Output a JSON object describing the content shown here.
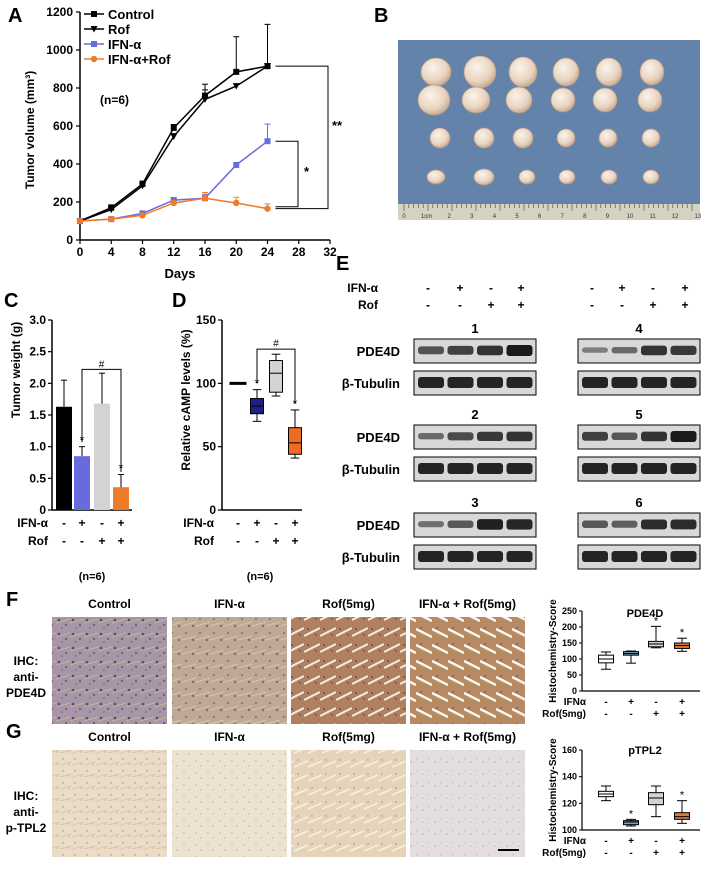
{
  "panel_letters": [
    "A",
    "B",
    "C",
    "D",
    "E",
    "F",
    "G"
  ],
  "colors": {
    "control": "#000000",
    "rof": "#d3d3d3",
    "ifn": "#6a6adf",
    "ifn_rof": "#ef7b2a",
    "cAMP_ifn": "#1f1f8a",
    "cAMP_combo": "#f06b22",
    "box_blue": "#6fa6c8",
    "box_orange": "#e07a3a",
    "tissue_bg": "#9c8aa0",
    "tissue_pale": "#e8d9c4",
    "photo_bg": "#5a7aa8",
    "blot_bg": "#d8d8d8",
    "blot_band": "#1a1a1a"
  },
  "chart_data": [
    {
      "panel": "A",
      "type": "line",
      "xlabel": "Days",
      "ylabel": "Tumor volume (mm³)",
      "xlim": [
        0,
        32
      ],
      "ylim": [
        0,
        1200
      ],
      "xticks": [
        0,
        4,
        8,
        12,
        16,
        20,
        24,
        28,
        32
      ],
      "yticks": [
        0,
        200,
        400,
        600,
        800,
        1000,
        1200
      ],
      "annotation": "(n=6)",
      "significance": [
        "**",
        "*"
      ],
      "series": [
        {
          "name": "Control",
          "x": [
            0,
            4,
            8,
            12,
            16,
            20,
            24
          ],
          "y": [
            100,
            170,
            295,
            590,
            760,
            885,
            915
          ],
          "err": [
            0,
            15,
            15,
            18,
            60,
            185,
            220
          ],
          "marker": "square"
        },
        {
          "name": "Rof",
          "x": [
            0,
            4,
            8,
            12,
            16,
            20,
            24
          ],
          "y": [
            100,
            160,
            285,
            545,
            740,
            810,
            915
          ],
          "err": [
            0,
            12,
            15,
            15,
            50,
            0,
            0
          ],
          "marker": "triangle-down"
        },
        {
          "name": "IFN-α",
          "x": [
            0,
            4,
            8,
            12,
            16,
            24
          ],
          "y": [
            100,
            110,
            140,
            210,
            220,
            520
          ],
          "err": [
            0,
            8,
            10,
            12,
            20,
            90
          ],
          "marker": "square"
        },
        {
          "name": "IFN-α+Rof",
          "x": [
            0,
            4,
            8,
            12,
            16,
            20,
            24
          ],
          "y": [
            100,
            110,
            130,
            195,
            220,
            195,
            165
          ],
          "err": [
            0,
            8,
            8,
            10,
            30,
            30,
            25
          ],
          "marker": "circle"
        }
      ],
      "extra_points": [
        {
          "series": "IFN-α",
          "x": 20,
          "y": 395,
          "err": 10
        }
      ]
    },
    {
      "panel": "C",
      "type": "bar",
      "ylabel": "Tumor weight (g)",
      "ylim": [
        0,
        3.0
      ],
      "yticks": [
        0,
        0.5,
        1.0,
        1.5,
        2.0,
        2.5,
        3.0
      ],
      "ytick_labels": [
        "0",
        "0.5",
        "1.0",
        "1.5",
        "2.0",
        "2.5",
        "3.0"
      ],
      "values": [
        1.63,
        0.85,
        1.68,
        0.36
      ],
      "err": [
        0.42,
        0.15,
        0.48,
        0.2
      ],
      "star": [
        "",
        "*",
        "",
        "*"
      ],
      "hash": "#",
      "row_labels": [
        "IFN-α",
        "Rof"
      ],
      "ifn_signs": [
        "-",
        "+",
        "-",
        "+"
      ],
      "rof_signs": [
        "-",
        "-",
        "+",
        "+"
      ],
      "annotation": "(n=6)"
    },
    {
      "panel": "D",
      "type": "box",
      "ylabel": "Relative cAMP levels (%)",
      "ylim": [
        0,
        150
      ],
      "yticks": [
        0,
        50,
        100,
        150
      ],
      "boxes": [
        {
          "median": 100,
          "q1": 100,
          "q3": 100,
          "min": 100,
          "max": 100,
          "star": ""
        },
        {
          "median": 82,
          "q1": 76,
          "q3": 88,
          "min": 70,
          "max": 95,
          "star": "*"
        },
        {
          "median": 108,
          "q1": 93,
          "q3": 118,
          "min": 90,
          "max": 123,
          "star": ""
        },
        {
          "median": 53,
          "q1": 44,
          "q3": 65,
          "min": 41,
          "max": 79,
          "star": "*"
        }
      ],
      "hash": "#",
      "row_labels": [
        "IFN-α",
        "Rof"
      ],
      "ifn_signs": [
        "-",
        "+",
        "-",
        "+"
      ],
      "rof_signs": [
        "-",
        "-",
        "+",
        "+"
      ],
      "annotation": "(n=6)"
    },
    {
      "panel": "F-right",
      "type": "box",
      "title": "PDE4D",
      "ylabel": "Histochemistry-Score",
      "ylim": [
        0,
        250
      ],
      "yticks": [
        0,
        50,
        100,
        150,
        200,
        250
      ],
      "boxes": [
        {
          "median": 100,
          "q1": 88,
          "q3": 112,
          "min": 68,
          "max": 122,
          "star": ""
        },
        {
          "median": 117,
          "q1": 112,
          "q3": 123,
          "min": 87,
          "max": 125,
          "star": ""
        },
        {
          "median": 147,
          "q1": 138,
          "q3": 155,
          "min": 135,
          "max": 202,
          "star": "*"
        },
        {
          "median": 142,
          "q1": 133,
          "q3": 150,
          "min": 124,
          "max": 165,
          "star": "*"
        }
      ],
      "row_labels": [
        "IFNα",
        "Rof(5mg)"
      ],
      "ifn_signs": [
        "-",
        "+",
        "-",
        "+"
      ],
      "rof_signs": [
        "-",
        "-",
        "+",
        "+"
      ]
    },
    {
      "panel": "G-right",
      "type": "box",
      "title": "pTPL2",
      "ylabel": "Histochemistry-Score",
      "ylim": [
        100,
        160
      ],
      "yticks": [
        100,
        120,
        140,
        160
      ],
      "boxes": [
        {
          "median": 127,
          "q1": 125,
          "q3": 129,
          "min": 122,
          "max": 133,
          "star": ""
        },
        {
          "median": 106,
          "q1": 104,
          "q3": 107,
          "min": 103,
          "max": 108,
          "star": "*"
        },
        {
          "median": 124,
          "q1": 119,
          "q3": 128,
          "min": 110,
          "max": 133,
          "star": ""
        },
        {
          "median": 110,
          "q1": 108,
          "q3": 113,
          "min": 105,
          "max": 122,
          "star": "*"
        }
      ],
      "row_labels": [
        "IFNα",
        "Rof(5mg)"
      ],
      "ifn_signs": [
        "-",
        "+",
        "-",
        "+"
      ],
      "rof_signs": [
        "-",
        "-",
        "+",
        "+"
      ]
    }
  ],
  "panel_e": {
    "row_labels": [
      "IFN-α",
      "Rof"
    ],
    "ifn_signs": [
      "-",
      "+",
      "-",
      "+"
    ],
    "rof_signs": [
      "-",
      "-",
      "+",
      "+"
    ],
    "blots": [
      {
        "id": "1",
        "pde_intensity": [
          0.55,
          0.7,
          0.8,
          1.0
        ]
      },
      {
        "id": "4",
        "pde_intensity": [
          0.2,
          0.35,
          0.8,
          0.75
        ]
      },
      {
        "id": "2",
        "pde_intensity": [
          0.35,
          0.6,
          0.75,
          0.8
        ]
      },
      {
        "id": "5",
        "pde_intensity": [
          0.7,
          0.5,
          0.8,
          1.0
        ]
      },
      {
        "id": "3",
        "pde_intensity": [
          0.3,
          0.5,
          0.95,
          0.9
        ]
      },
      {
        "id": "6",
        "pde_intensity": [
          0.5,
          0.45,
          0.85,
          0.85
        ]
      }
    ],
    "protein": "PDE4D",
    "loading": "β-Tubulin"
  },
  "panel_f": {
    "ihc_label": [
      "IHC:",
      "anti-",
      "PDE4D"
    ],
    "columns": [
      "Control",
      "IFN-α",
      "Rof(5mg)",
      "IFN-α + Rof(5mg)"
    ]
  },
  "panel_g": {
    "ihc_label": [
      "IHC:",
      "anti-",
      "p-TPL2"
    ],
    "columns": [
      "Control",
      "IFN-α",
      "Rof(5mg)",
      "IFN-α + Rof(5mg)"
    ]
  },
  "photo_ruler": [
    "0",
    "1cm",
    "2",
    "3",
    "4",
    "5",
    "6",
    "7",
    "8",
    "9",
    "10",
    "11",
    "12",
    "13"
  ]
}
